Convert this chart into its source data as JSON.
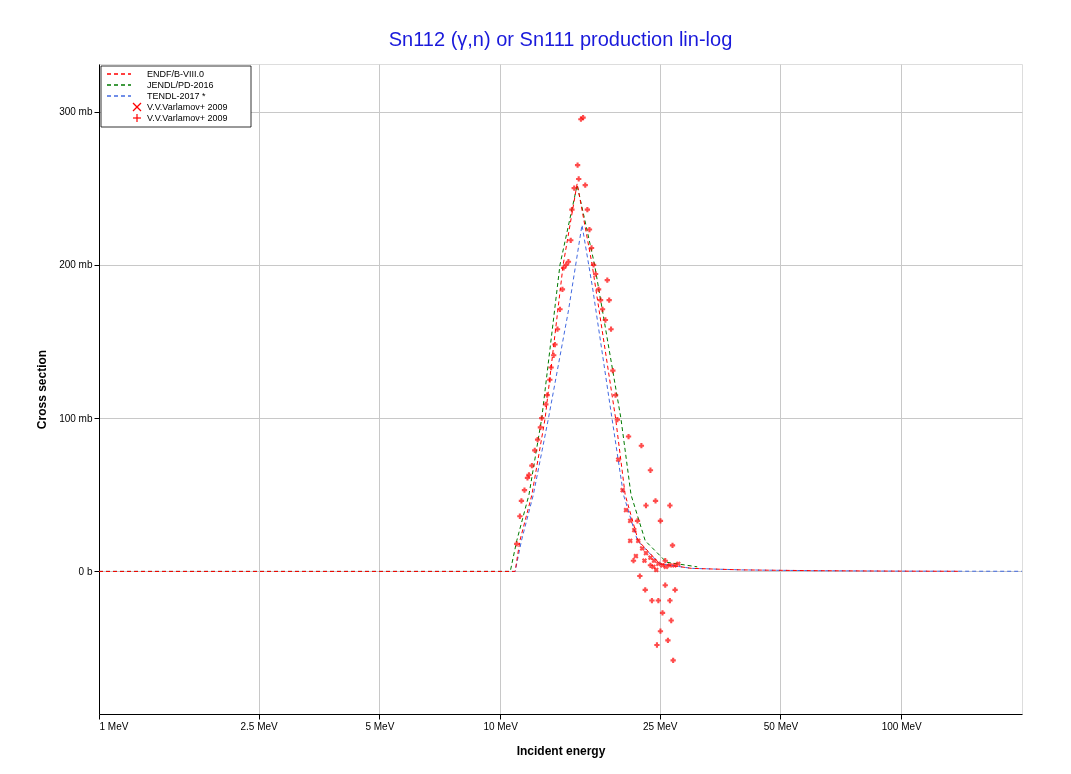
{
  "chart_data": {
    "type": "line",
    "title": "Sn112 (γ,n) or Sn111 production lin-log",
    "xlabel": "Incident energy",
    "ylabel": "Cross section",
    "log": "x",
    "grid": true,
    "legend": "top left",
    "xlim": [
      1,
      200
    ],
    "xticks": [
      {
        "value": 1,
        "label": "1 MeV"
      },
      {
        "value": 2.5,
        "label": "2.5 MeV"
      },
      {
        "value": 5,
        "label": "5 MeV"
      },
      {
        "value": 10,
        "label": "10 MeV"
      },
      {
        "value": 25,
        "label": "25 MeV"
      },
      {
        "value": 50,
        "label": "50 MeV"
      },
      {
        "value": 100,
        "label": "100 MeV"
      }
    ],
    "ylim": [
      -93,
      331
    ],
    "yticks": [
      {
        "value": 0,
        "label": "0 b"
      },
      {
        "value": 100,
        "label": "100 mb"
      },
      {
        "value": 200,
        "label": "200 mb"
      },
      {
        "value": 300,
        "label": "300 mb"
      }
    ],
    "series": [
      {
        "name": "ENDF/B-VIII.0",
        "color": "#ff0000",
        "line_style": "dashed",
        "x": [
          1,
          10.9,
          11.2,
          12,
          12.95,
          14.36,
          15.56,
          16.96,
          19.4,
          20.5,
          22.1,
          25,
          30,
          40,
          60,
          100,
          140
        ],
        "values": [
          0,
          0,
          20,
          50,
          100,
          200,
          253,
          200,
          100,
          50,
          20,
          5,
          2,
          1,
          0.5,
          0.2,
          0.1
        ]
      },
      {
        "name": "JENDL/PD-2016",
        "color": "#007a00",
        "line_style": "dashed",
        "x": [
          1,
          10.6,
          11,
          11.8,
          12.7,
          14.1,
          15.56,
          17.2,
          20,
          21.2,
          23,
          26,
          31
        ],
        "values": [
          0,
          0,
          20,
          50,
          100,
          200,
          252,
          200,
          100,
          50,
          20,
          6,
          3
        ]
      },
      {
        "name": "TENDL-2017 *",
        "color": "#4169e1",
        "line_style": "dashed",
        "x": [
          1,
          10.9,
          11.3,
          12.1,
          13.2,
          14.8,
          16,
          17,
          19,
          20.3,
          22,
          25,
          30,
          40,
          60,
          100,
          200
        ],
        "values": [
          0,
          0,
          20,
          50,
          100,
          170,
          226,
          185,
          100,
          50,
          20,
          5,
          2,
          1,
          0.5,
          0.2,
          0.1
        ]
      },
      {
        "name": "V.V.Varlamov+ 2009",
        "type": "scatter",
        "color": "#ff0000",
        "x": [
          19.7,
          20.2,
          20.6,
          21.1,
          21.6,
          22.1,
          22.6,
          23.1,
          23.7,
          24.2,
          24.8,
          25.4,
          25.9,
          26.5,
          27.2,
          27.8,
          21.1,
          21.8,
          22.9,
          24.1,
          24.5
        ],
        "values": [
          73,
          53,
          40,
          33,
          27,
          20,
          15,
          12,
          9,
          7,
          5,
          4,
          3,
          4,
          4,
          5,
          20,
          10,
          7,
          3,
          1
        ]
      },
      {
        "name": "V.V.Varlamov+ 2009",
        "type": "scatter",
        "marker": "cross",
        "color": "#ff0000",
        "x": [
          11.0,
          11.2,
          11.3,
          11.5,
          11.7,
          11.8,
          12.0,
          12.2,
          12.4,
          12.6,
          12.7,
          13.0,
          13.1,
          13.3,
          13.4,
          13.6,
          13.7,
          13.9,
          14.1,
          14.3,
          14.4,
          14.6,
          14.8,
          15.0,
          15.1,
          15.3,
          15.6,
          15.7,
          15.9,
          16.1,
          16.3,
          16.5,
          16.7,
          16.9,
          17.1,
          17.3,
          17.6,
          17.8,
          18.0,
          18.3,
          18.5,
          18.7,
          18.9,
          19.1,
          19.4,
          19.6,
          20.9,
          22.5,
          23.7,
          24.4,
          25.1,
          25.8,
          26.5,
          26.9,
          24.8,
          25.1,
          24.6,
          25.4,
          26.5,
          27.3,
          26.2,
          27.0,
          26.7,
          25.8,
          21.5,
          22.3,
          23.0,
          23.7,
          23.9,
          22.0,
          23.1
        ],
        "values": [
          18,
          36,
          46,
          53,
          61,
          63,
          69,
          79,
          86,
          94,
          100,
          109,
          115,
          125,
          133,
          141,
          148,
          158,
          171,
          184,
          198,
          200,
          202,
          216,
          236,
          250,
          265,
          256,
          295,
          296,
          252,
          236,
          223,
          211,
          200,
          194,
          184,
          177,
          171,
          164,
          190,
          177,
          158,
          131,
          115,
          99,
          88,
          82,
          66,
          46,
          33,
          7,
          43,
          17,
          -19,
          -39,
          -48,
          -27,
          -19,
          -12,
          -45,
          -58,
          -32,
          -9,
          7,
          -3,
          -12,
          4,
          -19,
          33,
          43
        ]
      }
    ]
  }
}
